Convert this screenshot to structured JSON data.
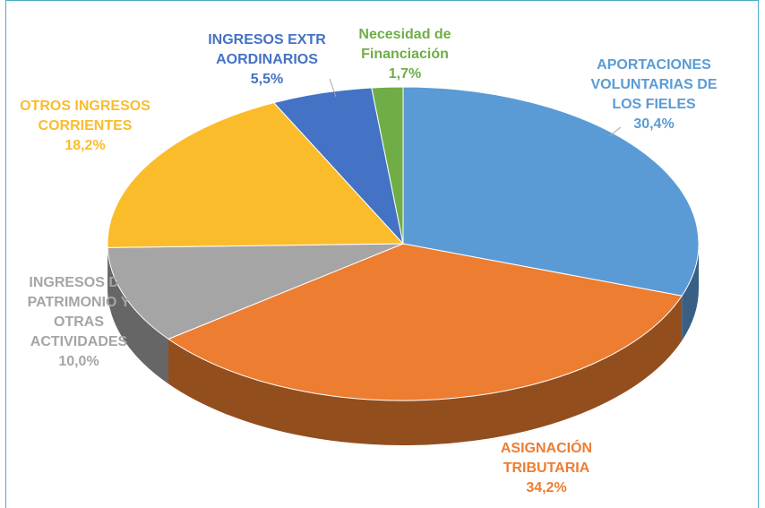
{
  "chart_data": {
    "type": "pie3d",
    "categories": [
      "APORTACIONES VOLUNTARIAS DE LOS FIELES",
      "ASIGNACIÓN TRIBUTARIA",
      "INGRESOS DE PATRIMONIO Y OTRAS ACTIVIDADES",
      "OTROS INGRESOS CORRIENTES",
      "INGRESOS EXTRAORDINARIOS",
      "Necesidad de Financiación"
    ],
    "values": [
      30.4,
      34.2,
      10.0,
      18.2,
      5.5,
      1.7
    ],
    "value_labels": [
      "30,4%",
      "34,2%",
      "10,0%",
      "18,2%",
      "5,5%",
      "1,7%"
    ],
    "colors": [
      "#5b9bd5",
      "#ed7d31",
      "#a5a5a5",
      "#fbbc2c",
      "#4472c4",
      "#70ad47"
    ]
  }
}
